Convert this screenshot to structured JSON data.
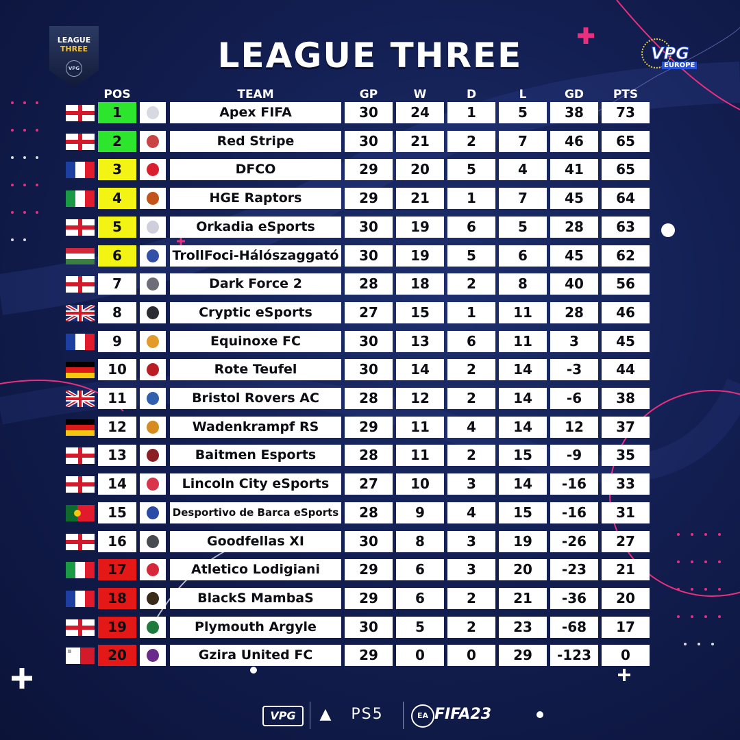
{
  "title": "LEAGUE THREE",
  "league_badge": {
    "line1": "LEAGUE",
    "line2": "THREE",
    "ring": "VPG"
  },
  "brand_logo": {
    "mark": "VPG",
    "sub": "EUROPE"
  },
  "headers": {
    "pos": "POS",
    "team": "TEAM",
    "gp": "GP",
    "w": "W",
    "d": "D",
    "l": "L",
    "gd": "GD",
    "pts": "PTS"
  },
  "colors": {
    "green": "#2ee52e",
    "yellow": "#f4f414",
    "red": "#e51818",
    "white": "#ffffff",
    "background": "#131f52",
    "accent_pink": "#e8307f"
  },
  "rows": [
    {
      "flag": "england",
      "pos": "1",
      "zone": "green",
      "crest": "#d8d8e2",
      "team": "Apex FIFA",
      "gp": "30",
      "w": "24",
      "d": "1",
      "l": "5",
      "gd": "38",
      "pts": "73"
    },
    {
      "flag": "england",
      "pos": "2",
      "zone": "green",
      "crest": "#c94545",
      "team": "Red Stripe",
      "gp": "30",
      "w": "21",
      "d": "2",
      "l": "7",
      "gd": "46",
      "pts": "65"
    },
    {
      "flag": "france",
      "pos": "3",
      "zone": "yellow",
      "crest": "#d8202e",
      "team": "DFCO",
      "gp": "29",
      "w": "20",
      "d": "5",
      "l": "4",
      "gd": "41",
      "pts": "65"
    },
    {
      "flag": "italy",
      "pos": "4",
      "zone": "yellow",
      "crest": "#c2541b",
      "team": "HGE Raptors",
      "gp": "29",
      "w": "21",
      "d": "1",
      "l": "7",
      "gd": "45",
      "pts": "64"
    },
    {
      "flag": "england",
      "pos": "5",
      "zone": "yellow",
      "crest": "#cfcfdc",
      "team": "Orkadia eSports",
      "gp": "30",
      "w": "19",
      "d": "6",
      "l": "5",
      "gd": "28",
      "pts": "63"
    },
    {
      "flag": "hungary",
      "pos": "6",
      "zone": "yellow",
      "crest": "#3350a8",
      "team": "TrollFoci-Hálószaggató",
      "gp": "30",
      "w": "19",
      "d": "5",
      "l": "6",
      "gd": "45",
      "pts": "62"
    },
    {
      "flag": "england",
      "pos": "7",
      "zone": "white",
      "crest": "#6d6d78",
      "team": "Dark Force 2",
      "gp": "28",
      "w": "18",
      "d": "2",
      "l": "8",
      "gd": "40",
      "pts": "56"
    },
    {
      "flag": "uk",
      "pos": "8",
      "zone": "white",
      "crest": "#2b2b33",
      "team": "Cryptic eSports",
      "gp": "27",
      "w": "15",
      "d": "1",
      "l": "11",
      "gd": "28",
      "pts": "46"
    },
    {
      "flag": "france",
      "pos": "9",
      "zone": "white",
      "crest": "#e39a2c",
      "team": "Equinoxe FC",
      "gp": "30",
      "w": "13",
      "d": "6",
      "l": "11",
      "gd": "3",
      "pts": "45"
    },
    {
      "flag": "germany",
      "pos": "10",
      "zone": "white",
      "crest": "#b81e24",
      "team": "Rote Teufel",
      "gp": "30",
      "w": "14",
      "d": "2",
      "l": "14",
      "gd": "-3",
      "pts": "44"
    },
    {
      "flag": "uk",
      "pos": "11",
      "zone": "white",
      "crest": "#2f5fae",
      "team": "Bristol Rovers AC",
      "gp": "28",
      "w": "12",
      "d": "2",
      "l": "14",
      "gd": "-6",
      "pts": "38"
    },
    {
      "flag": "germany",
      "pos": "12",
      "zone": "white",
      "crest": "#d78a1e",
      "team": "Wadenkrampf RS",
      "gp": "29",
      "w": "11",
      "d": "4",
      "l": "14",
      "gd": "12",
      "pts": "37"
    },
    {
      "flag": "england",
      "pos": "13",
      "zone": "white",
      "crest": "#8c1f24",
      "team": "Baitmen Esports",
      "gp": "28",
      "w": "11",
      "d": "2",
      "l": "15",
      "gd": "-9",
      "pts": "35"
    },
    {
      "flag": "england",
      "pos": "14",
      "zone": "white",
      "crest": "#d8344a",
      "team": "Lincoln City eSports",
      "gp": "27",
      "w": "10",
      "d": "3",
      "l": "14",
      "gd": "-16",
      "pts": "33"
    },
    {
      "flag": "portugal",
      "pos": "15",
      "zone": "white",
      "crest": "#2b4aa6",
      "team": "Desportivo de Barca eSports",
      "gp": "28",
      "w": "9",
      "d": "4",
      "l": "15",
      "gd": "-16",
      "pts": "31"
    },
    {
      "flag": "england",
      "pos": "16",
      "zone": "white",
      "crest": "#4a4a52",
      "team": "Goodfellas XI",
      "gp": "30",
      "w": "8",
      "d": "3",
      "l": "19",
      "gd": "-26",
      "pts": "27"
    },
    {
      "flag": "italy",
      "pos": "17",
      "zone": "red",
      "crest": "#d6283a",
      "team": "Atletico Lodigiani",
      "gp": "29",
      "w": "6",
      "d": "3",
      "l": "20",
      "gd": "-23",
      "pts": "21"
    },
    {
      "flag": "france",
      "pos": "18",
      "zone": "red",
      "crest": "#3a2a18",
      "team": "BlackS MambaS",
      "gp": "29",
      "w": "6",
      "d": "2",
      "l": "21",
      "gd": "-36",
      "pts": "20"
    },
    {
      "flag": "england",
      "pos": "19",
      "zone": "red",
      "crest": "#1f7a3e",
      "team": "Plymouth Argyle",
      "gp": "30",
      "w": "5",
      "d": "2",
      "l": "23",
      "gd": "-68",
      "pts": "17"
    },
    {
      "flag": "malta",
      "pos": "20",
      "zone": "red",
      "crest": "#6a2a8a",
      "team": "Gzira United FC",
      "gp": "29",
      "w": "0",
      "d": "0",
      "l": "29",
      "gd": "-123",
      "pts": "0"
    }
  ],
  "footer": {
    "vpg": "VPG",
    "ps5": "PS5",
    "ea": "EA",
    "fifa": "FIFA23"
  }
}
